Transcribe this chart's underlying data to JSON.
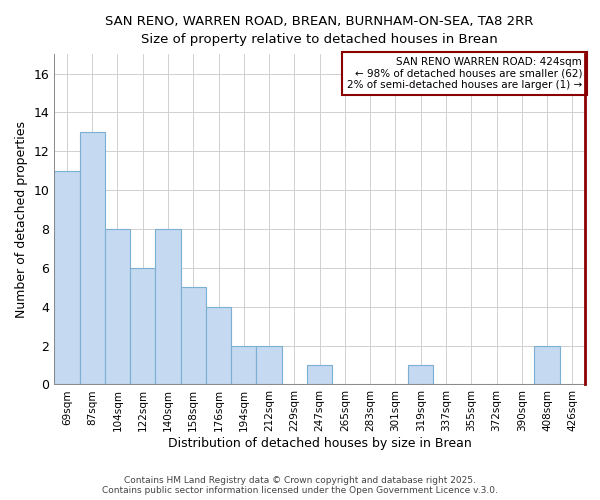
{
  "title": "SAN RENO, WARREN ROAD, BREAN, BURNHAM-ON-SEA, TA8 2RR",
  "subtitle": "Size of property relative to detached houses in Brean",
  "xlabel": "Distribution of detached houses by size in Brean",
  "ylabel": "Number of detached properties",
  "categories": [
    "69sqm",
    "87sqm",
    "104sqm",
    "122sqm",
    "140sqm",
    "158sqm",
    "176sqm",
    "194sqm",
    "212sqm",
    "229sqm",
    "247sqm",
    "265sqm",
    "283sqm",
    "301sqm",
    "319sqm",
    "337sqm",
    "355sqm",
    "372sqm",
    "390sqm",
    "408sqm",
    "426sqm"
  ],
  "values": [
    11,
    13,
    8,
    6,
    8,
    5,
    4,
    2,
    2,
    0,
    1,
    0,
    0,
    0,
    1,
    0,
    0,
    0,
    0,
    2,
    0
  ],
  "bar_color": "#c5d9f0",
  "bar_edge_color": "#7bafd4",
  "ylim": [
    0,
    17
  ],
  "yticks": [
    0,
    2,
    4,
    6,
    8,
    10,
    12,
    14,
    16
  ],
  "highlight_line_color": "#8b0000",
  "annotation_text": "SAN RENO WARREN ROAD: 424sqm\n← 98% of detached houses are smaller (62)\n2% of semi-detached houses are larger (1) →",
  "annotation_box_color": "#ffffff",
  "annotation_box_edge_color": "#8b0000",
  "footer_text": "Contains HM Land Registry data © Crown copyright and database right 2025.\nContains public sector information licensed under the Open Government Licence v.3.0.",
  "background_color": "#ffffff",
  "grid_color": "#d0d0d0"
}
